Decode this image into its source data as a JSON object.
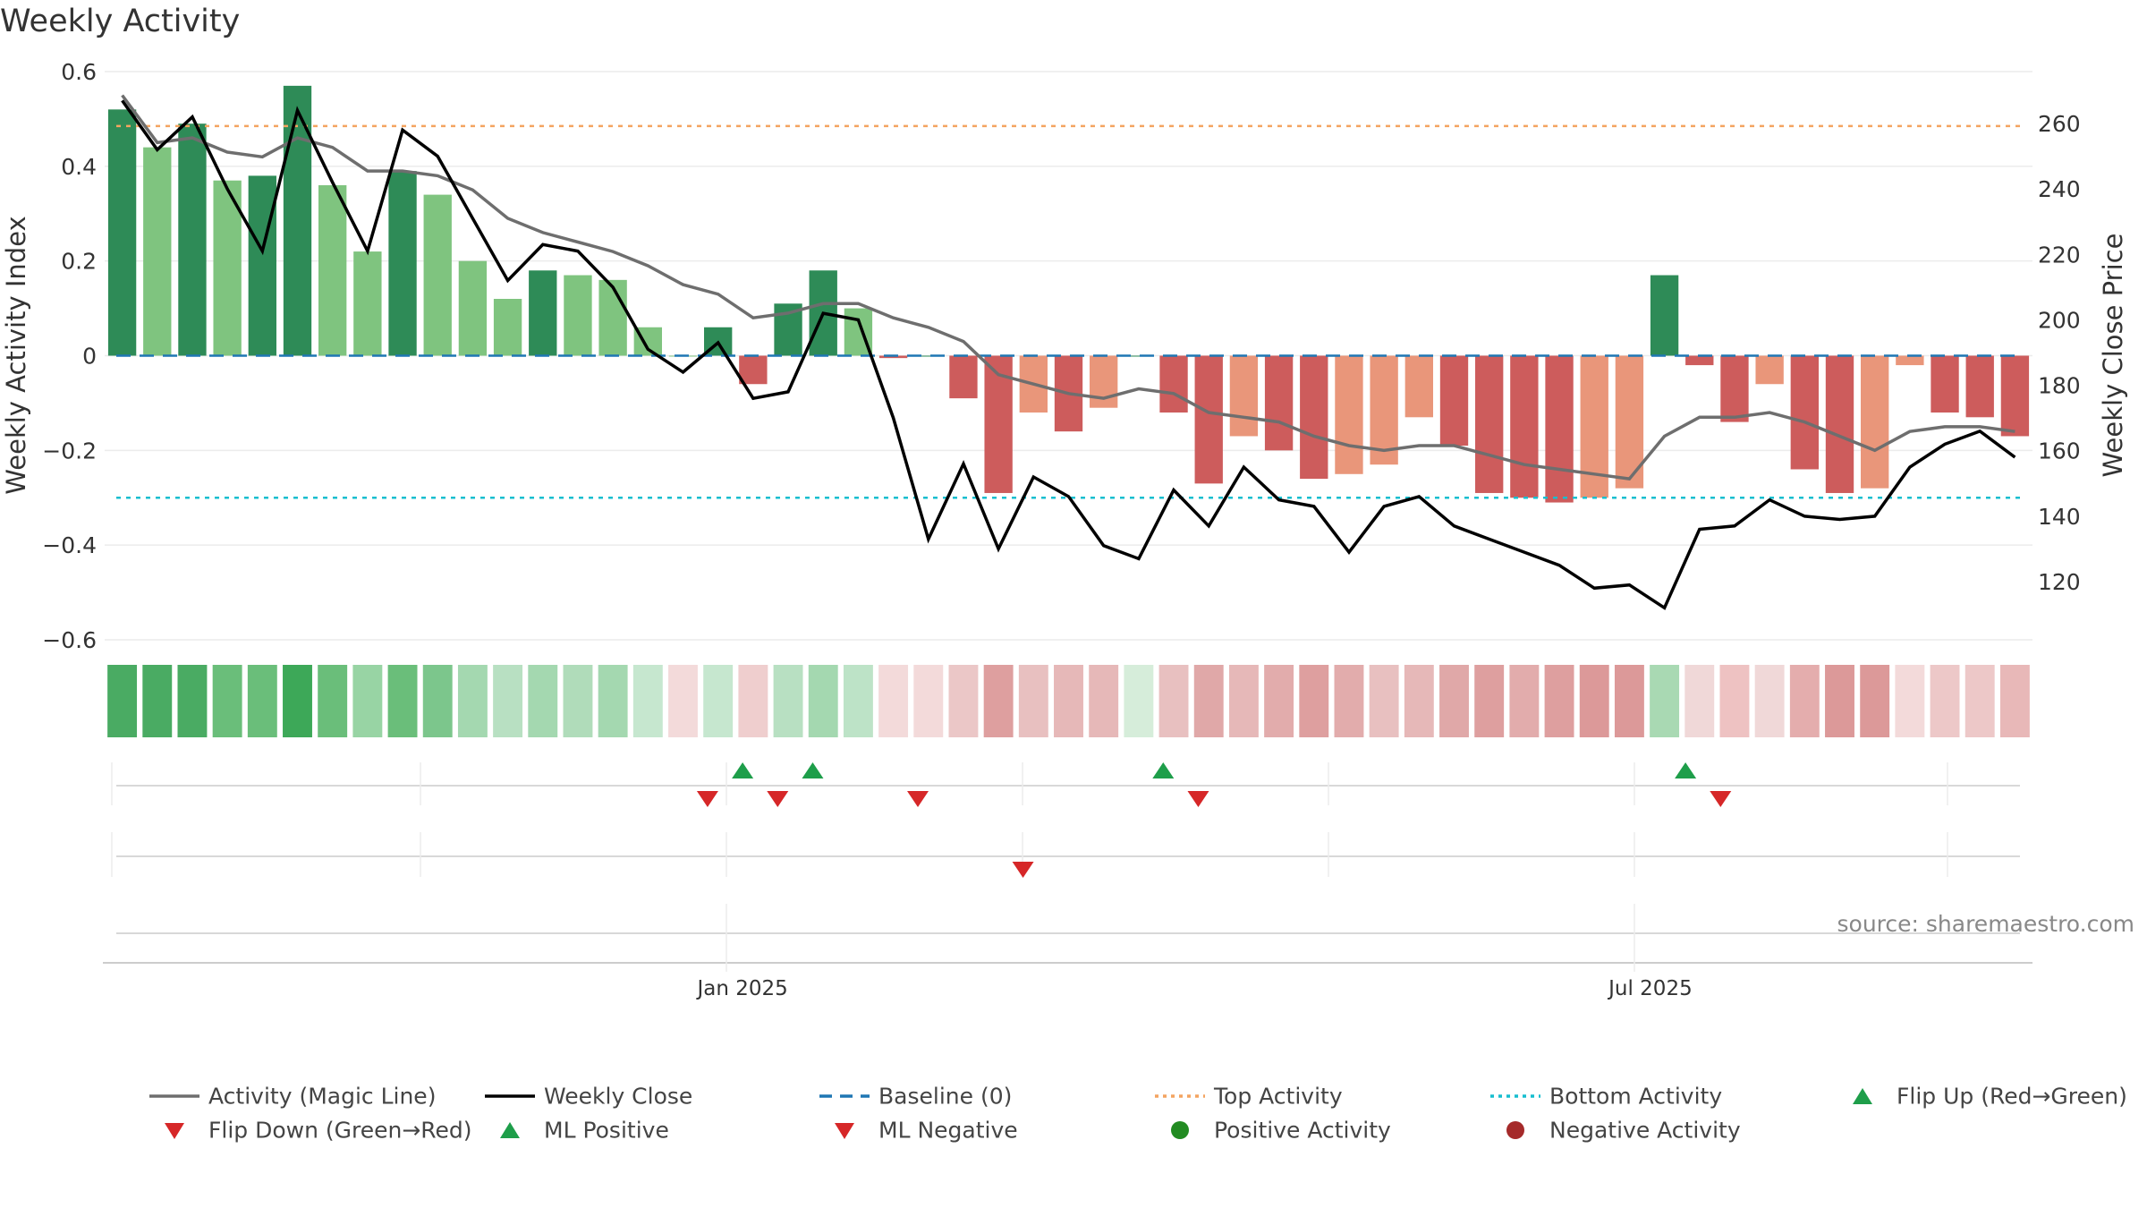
{
  "title": "Weekly Activity",
  "source": "source: sharemaestro.com",
  "colors": {
    "green_dark": "#2e8b57",
    "green_light": "#7fc47f",
    "red_dark": "#cd5c5c",
    "red_light": "#e9967a",
    "magic": "#6e6e6e",
    "close": "#000000",
    "baseline": "#1f77b4",
    "top": "#f4a460",
    "bottom": "#17becf",
    "marker_up": "#1e9e4a",
    "marker_down": "#d62728",
    "pos_activity": "#228b22",
    "neg_activity": "#a52a2a"
  },
  "chart_data": {
    "type": "bar+line",
    "title": "Weekly Activity",
    "ylabel_left": "Weekly Activity Index",
    "ylabel_right": "Weekly Close Price",
    "ylim_left": [
      -0.6,
      0.6
    ],
    "ylim_right": [
      100,
      270
    ],
    "yticks_left": [
      0.6,
      0.4,
      0.2,
      0,
      -0.2,
      -0.4,
      -0.6
    ],
    "ytick_labels_left": [
      "0.6",
      "0.4",
      "0.2",
      "0",
      "−0.2",
      "−0.4",
      "−0.6"
    ],
    "yticks_right": [
      260,
      240,
      220,
      200,
      180,
      160,
      140,
      120
    ],
    "ytick_labels_right": [
      "260",
      "240",
      "220",
      "200",
      "180",
      "160",
      "140",
      "120"
    ],
    "x_tick_labels": [
      {
        "index": 17.7,
        "label": "Jan 2025"
      },
      {
        "index": 43.6,
        "label": "Jul 2025"
      }
    ],
    "bar_shades": [
      "dark",
      "light",
      "dark",
      "light",
      "dark",
      "dark",
      "light",
      "light",
      "dark",
      "light",
      "light",
      "light",
      "dark",
      "light",
      "light",
      "light",
      "light",
      "dark",
      "dark",
      "dark",
      "light",
      "dark",
      "light",
      "dark",
      "dark",
      "light",
      "dark",
      "light",
      "light",
      "dark",
      "dark",
      "light",
      "dark",
      "light",
      "dark",
      "dark",
      "light",
      "light",
      "light",
      "light",
      "light",
      "light",
      "light",
      "light",
      "light",
      "light",
      "light",
      "light",
      "light",
      "light",
      "light",
      "light",
      "light",
      "light",
      "light"
    ],
    "bars": [
      0.52,
      0.44,
      0.49,
      0.37,
      0.38,
      0.57,
      0.36,
      0.22,
      0.39,
      0.34,
      0.2,
      0.12,
      0.18,
      0.17,
      0.16,
      0.06,
      0.0,
      0.06,
      -0.06,
      0.11,
      0.18,
      0.1,
      -0.005,
      0.0,
      -0.09,
      -0.29,
      -0.12,
      -0.16,
      -0.11,
      0.0,
      -0.12,
      -0.27,
      -0.17,
      -0.2,
      -0.26,
      -0.25,
      -0.23,
      -0.13,
      -0.19,
      -0.29,
      -0.3,
      -0.31,
      -0.3,
      -0.28,
      0.17,
      -0.02,
      -0.14,
      -0.06,
      -0.24,
      -0.29,
      -0.28,
      -0.02,
      -0.12,
      -0.13,
      -0.17
    ],
    "bar_tone": [
      "dark",
      "light",
      "dark",
      "light",
      "dark",
      "dark",
      "light",
      "light",
      "dark",
      "light",
      "light",
      "light",
      "dark",
      "light",
      "light",
      "light",
      "light",
      "dark",
      "dark",
      "dark",
      "dark",
      "light",
      "dark",
      "dark",
      "dark",
      "dark",
      "light",
      "dark",
      "light",
      "dark",
      "dark",
      "dark",
      "light",
      "dark",
      "dark",
      "light",
      "light",
      "light",
      "dark",
      "dark",
      "dark",
      "dark",
      "light",
      "light",
      "dark",
      "dark",
      "dark",
      "light",
      "dark",
      "dark",
      "light",
      "light",
      "dark",
      "dark",
      "dark"
    ],
    "magic_line": [
      0.55,
      0.45,
      0.46,
      0.43,
      0.42,
      0.46,
      0.44,
      0.39,
      0.39,
      0.38,
      0.35,
      0.29,
      0.26,
      0.24,
      0.22,
      0.19,
      0.15,
      0.13,
      0.08,
      0.09,
      0.11,
      0.11,
      0.08,
      0.06,
      0.03,
      -0.04,
      -0.06,
      -0.08,
      -0.09,
      -0.07,
      -0.08,
      -0.12,
      -0.13,
      -0.14,
      -0.17,
      -0.19,
      -0.2,
      -0.19,
      -0.19,
      -0.21,
      -0.23,
      -0.24,
      -0.25,
      -0.26,
      -0.17,
      -0.13,
      -0.13,
      -0.12,
      -0.14,
      -0.17,
      -0.2,
      -0.16,
      -0.15,
      -0.15,
      -0.16
    ],
    "weekly_close": [
      267,
      252,
      262,
      240,
      221,
      264,
      242,
      221,
      258,
      250,
      231,
      212,
      223,
      221,
      210,
      191,
      184,
      193,
      176,
      178,
      202,
      200,
      170,
      133,
      156,
      130,
      152,
      146,
      131,
      127,
      148,
      137,
      155,
      145,
      143,
      129,
      143,
      146,
      137,
      133,
      129,
      125,
      118,
      119,
      112,
      136,
      137,
      145,
      140,
      139,
      140,
      155,
      162,
      166,
      158
    ],
    "top_activity": 0.485,
    "bottom_activity": -0.3,
    "baseline": 0,
    "strip_colors": [
      "#4aab63",
      "#4aab63",
      "#4aab63",
      "#6abe7a",
      "#6abe7a",
      "#3da858",
      "#6abe7a",
      "#98d4a4",
      "#6abe7a",
      "#7cc68c",
      "#a4d8b0",
      "#b8e0c2",
      "#a4d8b0",
      "#b0dcba",
      "#a4d8b0",
      "#c6e7cf",
      "#f3dada",
      "#c6e7cf",
      "#efcece",
      "#b8e0c2",
      "#a4d8b0",
      "#bde3c7",
      "#f3dada",
      "#f3dada",
      "#ebc7c7",
      "#de9f9f",
      "#e8c0c0",
      "#e6b8b8",
      "#e6b8b8",
      "#d6edda",
      "#e8c0c0",
      "#e0a8a8",
      "#e6b8b8",
      "#e2acac",
      "#de9f9f",
      "#e2acac",
      "#e8c0c0",
      "#e6b8b8",
      "#e0a8a8",
      "#de9f9f",
      "#e2acac",
      "#de9f9f",
      "#dc9999",
      "#dc9999",
      "#a9d9b3",
      "#f0d8d8",
      "#eec2c2",
      "#f0d8d8",
      "#e4adad",
      "#dc9999",
      "#dc9999",
      "#f3dada",
      "#edc8c8",
      "#edc8c8",
      "#e8b8b8"
    ],
    "flip_up": [
      17.7,
      19.7,
      29.7,
      44.6
    ],
    "flip_down": [
      16.7,
      18.7,
      22.7,
      30.7,
      45.6
    ],
    "ml_negative": [
      25.7
    ]
  },
  "legend": [
    {
      "label": "Activity (Magic Line)",
      "kind": "line-solid-gray"
    },
    {
      "label": "Weekly Close",
      "kind": "line-solid-black"
    },
    {
      "label": "Baseline (0)",
      "kind": "line-dash-blue"
    },
    {
      "label": "Top Activity",
      "kind": "line-dot-orange"
    },
    {
      "label": "Bottom Activity",
      "kind": "line-dot-cyan"
    },
    {
      "label": "Flip Up (Red→Green)",
      "kind": "tri-up-green"
    },
    {
      "label": "Flip Down (Green→Red)",
      "kind": "tri-down-red"
    },
    {
      "label": "ML Positive",
      "kind": "tri-up-green"
    },
    {
      "label": "ML Negative",
      "kind": "tri-down-red"
    },
    {
      "label": "Positive Activity",
      "kind": "dot-green"
    },
    {
      "label": "Negative Activity",
      "kind": "dot-darkred"
    }
  ]
}
